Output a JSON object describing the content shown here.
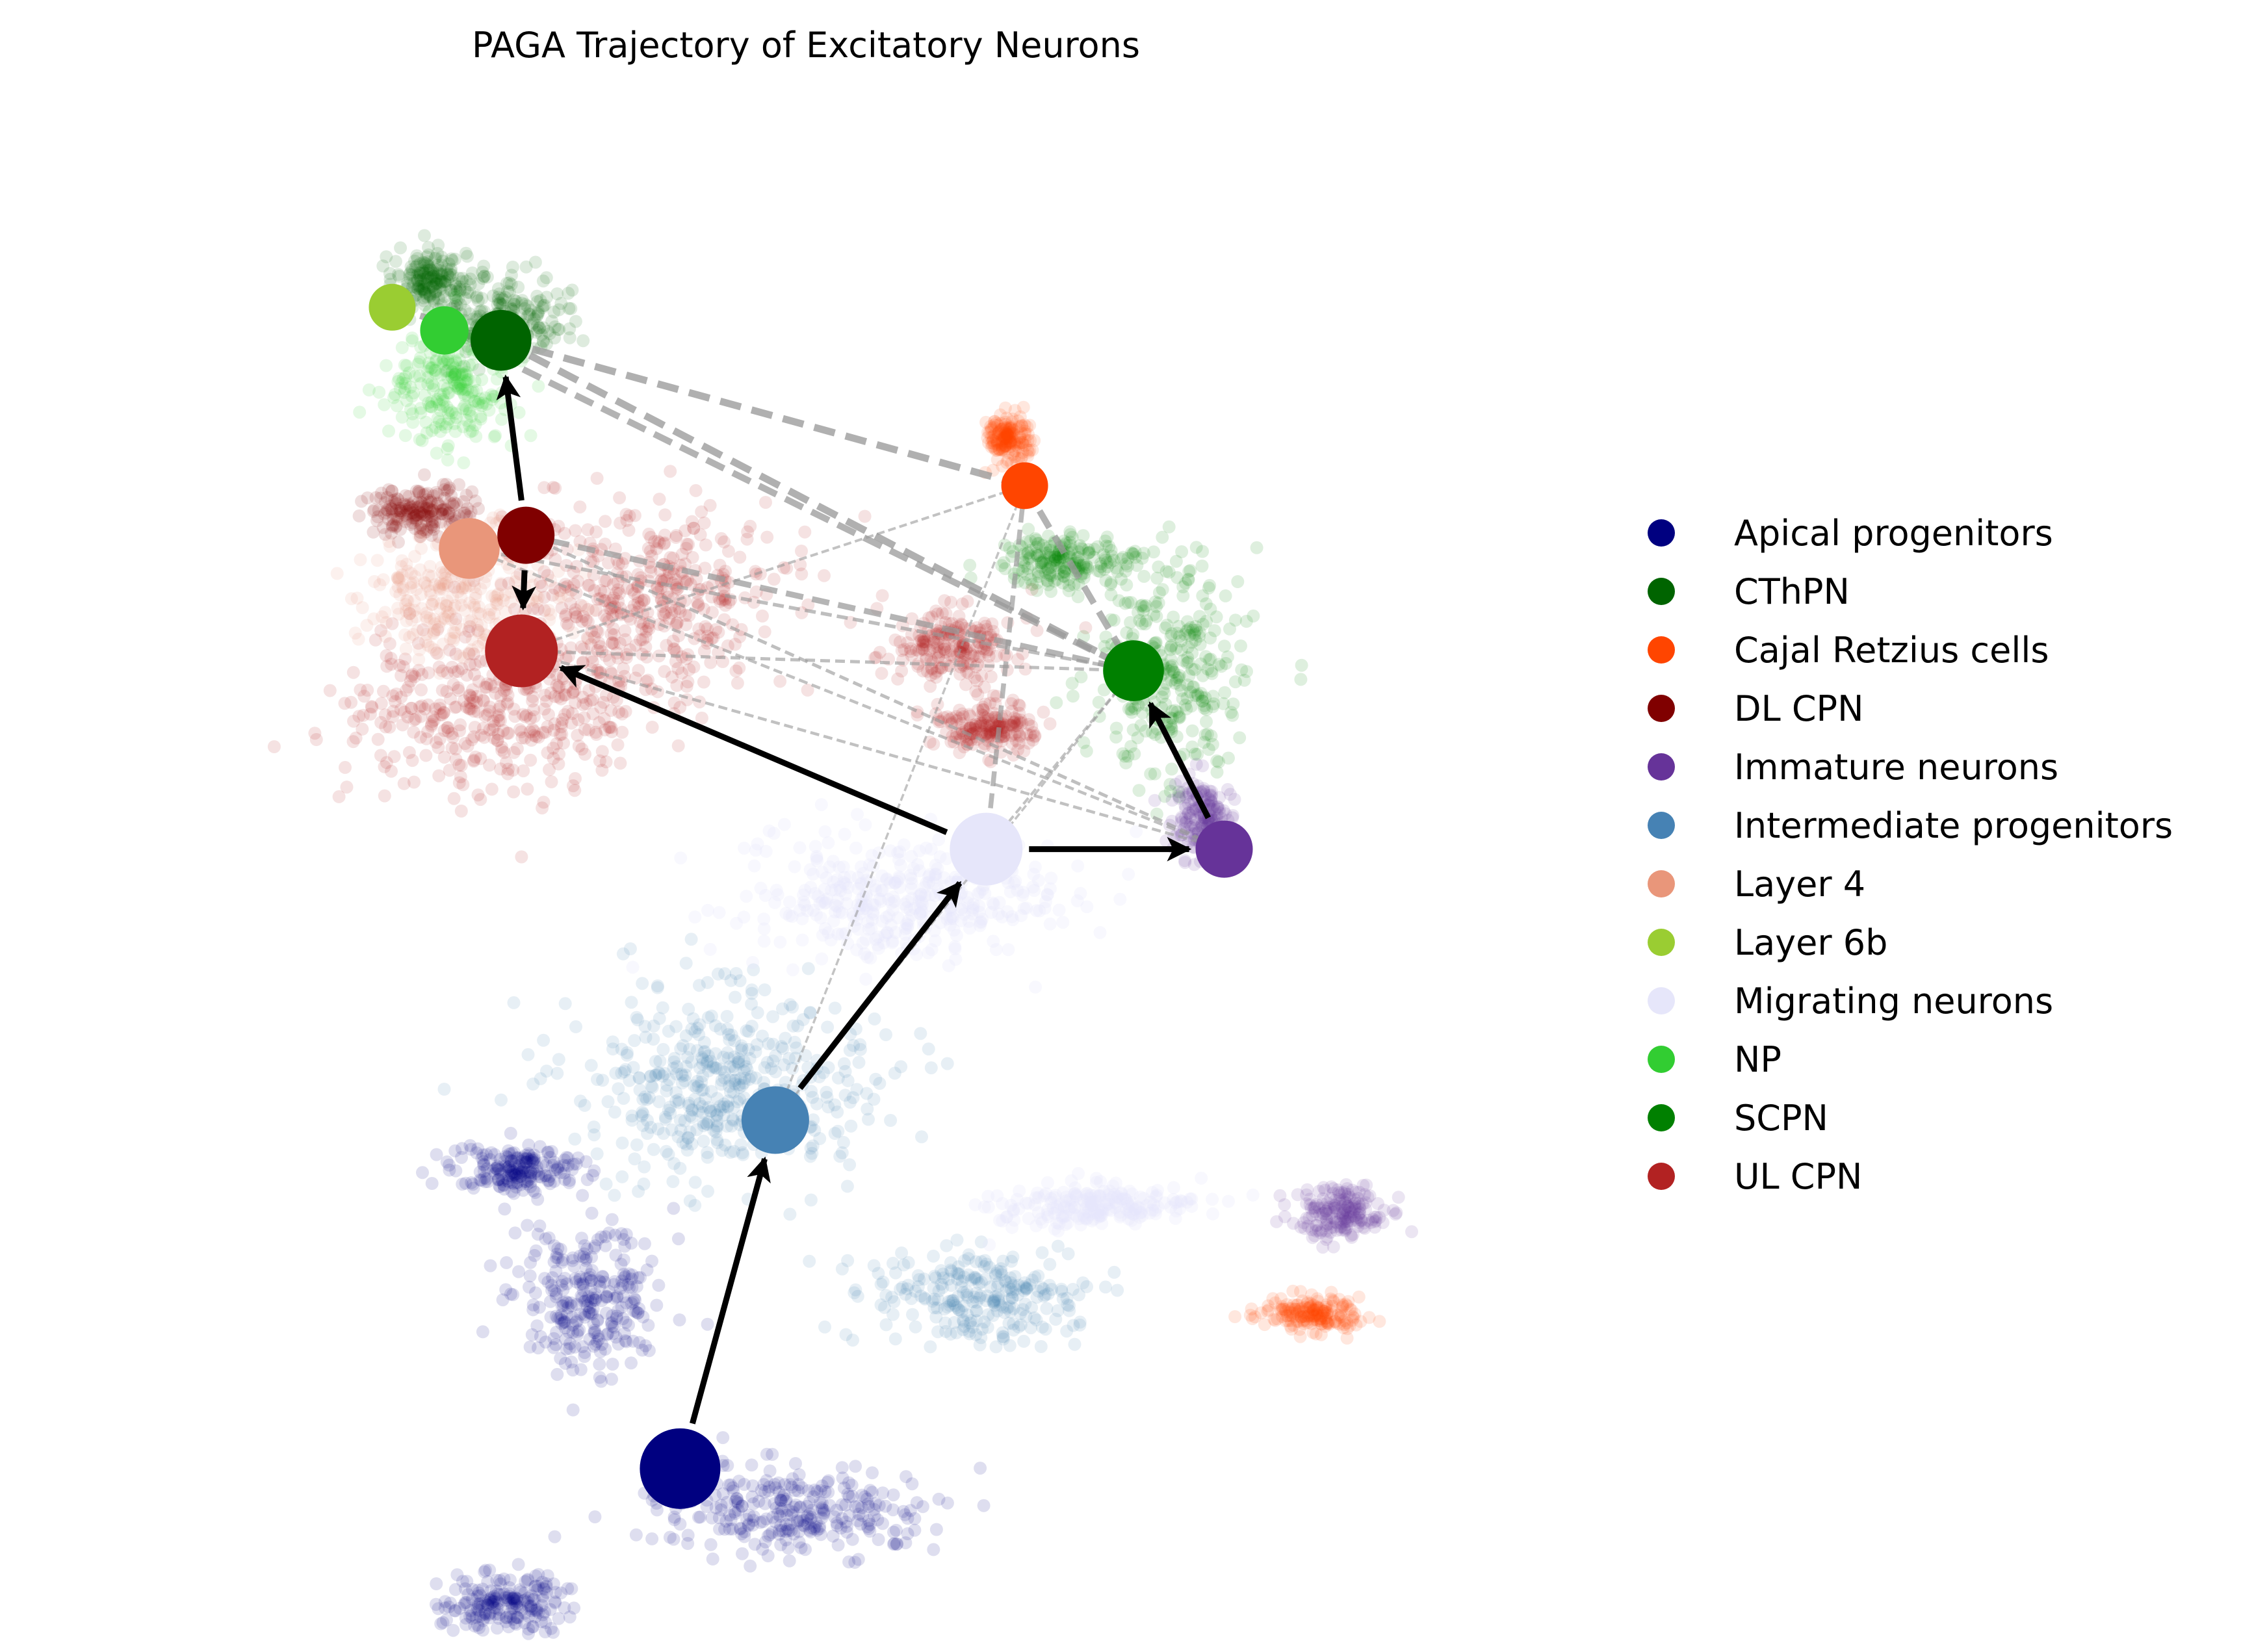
{
  "chart_data": {
    "type": "scatter",
    "title": "PAGA Trajectory of Excitatory Neurons",
    "xlabel": "",
    "ylabel": "",
    "grid": false,
    "axes_visible": false,
    "legend_position": "right",
    "series": [
      {
        "name": "Apical progenitors",
        "color": "#000080"
      },
      {
        "name": "CThPN",
        "color": "#006400"
      },
      {
        "name": "Cajal Retzius cells",
        "color": "#FF4500"
      },
      {
        "name": "DL CPN",
        "color": "#800000"
      },
      {
        "name": "Immature neurons",
        "color": "#663399"
      },
      {
        "name": "Intermediate progenitors",
        "color": "#4682B4"
      },
      {
        "name": "Layer 4",
        "color": "#E9967A"
      },
      {
        "name": "Layer 6b",
        "color": "#9ACD32"
      },
      {
        "name": "Migrating neurons",
        "color": "#E6E6FA"
      },
      {
        "name": "NP",
        "color": "#32CD32"
      },
      {
        "name": "SCPN",
        "color": "#008000"
      },
      {
        "name": "UL CPN",
        "color": "#B22222"
      }
    ],
    "paga_nodes": [
      {
        "cluster": "Apical progenitors",
        "x": 0.3,
        "y": 0.111,
        "size": 1.0
      },
      {
        "cluster": "Intermediate progenitors",
        "x": 0.342,
        "y": 0.322,
        "size": 0.75
      },
      {
        "cluster": "Migrating neurons",
        "x": 0.435,
        "y": 0.486,
        "size": 0.85
      },
      {
        "cluster": "Immature neurons",
        "x": 0.54,
        "y": 0.486,
        "size": 0.55
      },
      {
        "cluster": "SCPN",
        "x": 0.5,
        "y": 0.594,
        "size": 0.62
      },
      {
        "cluster": "UL CPN",
        "x": 0.23,
        "y": 0.606,
        "size": 0.85
      },
      {
        "cluster": "Layer 4",
        "x": 0.207,
        "y": 0.668,
        "size": 0.62
      },
      {
        "cluster": "DL CPN",
        "x": 0.232,
        "y": 0.676,
        "size": 0.55
      },
      {
        "cluster": "CThPN",
        "x": 0.221,
        "y": 0.794,
        "size": 0.62
      },
      {
        "cluster": "NP",
        "x": 0.196,
        "y": 0.8,
        "size": 0.38
      },
      {
        "cluster": "Layer 6b",
        "x": 0.173,
        "y": 0.814,
        "size": 0.35
      },
      {
        "cluster": "Cajal Retzius cells",
        "x": 0.452,
        "y": 0.706,
        "size": 0.35
      }
    ],
    "paga_transitions": [
      {
        "from": "Apical progenitors",
        "to": "Intermediate progenitors"
      },
      {
        "from": "Intermediate progenitors",
        "to": "Migrating neurons"
      },
      {
        "from": "Migrating neurons",
        "to": "Immature neurons"
      },
      {
        "from": "Migrating neurons",
        "to": "UL CPN"
      },
      {
        "from": "Immature neurons",
        "to": "SCPN"
      },
      {
        "from": "DL CPN",
        "to": "UL CPN"
      },
      {
        "from": "DL CPN",
        "to": "CThPN"
      }
    ],
    "paga_connections": [
      {
        "from": "CThPN",
        "to": "SCPN",
        "weight": 0.9
      },
      {
        "from": "NP",
        "to": "SCPN",
        "weight": 0.8
      },
      {
        "from": "CThPN",
        "to": "Cajal Retzius cells",
        "weight": 0.9
      },
      {
        "from": "Layer 6b",
        "to": "CThPN",
        "weight": 0.8
      },
      {
        "from": "Cajal Retzius cells",
        "to": "SCPN",
        "weight": 0.8
      },
      {
        "from": "DL CPN",
        "to": "SCPN",
        "weight": 0.7
      },
      {
        "from": "Layer 4",
        "to": "SCPN",
        "weight": 0.35
      },
      {
        "from": "UL CPN",
        "to": "SCPN",
        "weight": 0.3
      },
      {
        "from": "Layer 4",
        "to": "Immature neurons",
        "weight": 0.25
      },
      {
        "from": "UL CPN",
        "to": "Immature neurons",
        "weight": 0.25
      },
      {
        "from": "DL CPN",
        "to": "Immature neurons",
        "weight": 0.3
      },
      {
        "from": "UL CPN",
        "to": "Cajal Retzius cells",
        "weight": 0.2
      },
      {
        "from": "Cajal Retzius cells",
        "to": "Migrating neurons",
        "weight": 0.55
      },
      {
        "from": "Intermediate progenitors",
        "to": "Cajal Retzius cells",
        "weight": 0.15
      },
      {
        "from": "Intermediate progenitors",
        "to": "SCPN",
        "weight": 0.15
      },
      {
        "from": "Migrating neurons",
        "to": "SCPN",
        "weight": 0.2
      }
    ],
    "cell_clouds": [
      {
        "cluster": "Apical progenitors",
        "cx": 0.35,
        "cy": 0.085,
        "rx": 0.055,
        "ry": 0.024
      },
      {
        "cluster": "Apical progenitors",
        "cx": 0.26,
        "cy": 0.215,
        "rx": 0.03,
        "ry": 0.038
      },
      {
        "cluster": "Apical progenitors",
        "cx": 0.228,
        "cy": 0.292,
        "rx": 0.026,
        "ry": 0.014
      },
      {
        "cluster": "Apical progenitors",
        "cx": 0.222,
        "cy": 0.03,
        "rx": 0.024,
        "ry": 0.016
      },
      {
        "cluster": "Intermediate progenitors",
        "cx": 0.32,
        "cy": 0.345,
        "rx": 0.06,
        "ry": 0.05
      },
      {
        "cluster": "Intermediate progenitors",
        "cx": 0.43,
        "cy": 0.215,
        "rx": 0.04,
        "ry": 0.026
      },
      {
        "cluster": "Migrating neurons",
        "cx": 0.4,
        "cy": 0.455,
        "rx": 0.065,
        "ry": 0.035
      },
      {
        "cluster": "Migrating neurons",
        "cx": 0.48,
        "cy": 0.27,
        "rx": 0.04,
        "ry": 0.012
      },
      {
        "cluster": "UL CPN",
        "cx": 0.218,
        "cy": 0.57,
        "rx": 0.06,
        "ry": 0.045
      },
      {
        "cluster": "UL CPN",
        "cx": 0.285,
        "cy": 0.64,
        "rx": 0.055,
        "ry": 0.05
      },
      {
        "cluster": "UL CPN",
        "cx": 0.42,
        "cy": 0.61,
        "rx": 0.025,
        "ry": 0.02
      },
      {
        "cluster": "UL CPN",
        "cx": 0.435,
        "cy": 0.56,
        "rx": 0.02,
        "ry": 0.014
      },
      {
        "cluster": "Layer 4",
        "cx": 0.205,
        "cy": 0.64,
        "rx": 0.04,
        "ry": 0.035
      },
      {
        "cluster": "DL CPN",
        "cx": 0.185,
        "cy": 0.69,
        "rx": 0.02,
        "ry": 0.014
      },
      {
        "cluster": "CThPN",
        "cx": 0.22,
        "cy": 0.81,
        "rx": 0.028,
        "ry": 0.022
      },
      {
        "cluster": "CThPN",
        "cx": 0.19,
        "cy": 0.83,
        "rx": 0.015,
        "ry": 0.015
      },
      {
        "cluster": "NP",
        "cx": 0.2,
        "cy": 0.765,
        "rx": 0.025,
        "ry": 0.03
      },
      {
        "cluster": "SCPN",
        "cx": 0.515,
        "cy": 0.6,
        "rx": 0.03,
        "ry": 0.06
      },
      {
        "cluster": "SCPN",
        "cx": 0.47,
        "cy": 0.66,
        "rx": 0.025,
        "ry": 0.015
      },
      {
        "cluster": "Immature neurons",
        "cx": 0.53,
        "cy": 0.505,
        "rx": 0.012,
        "ry": 0.02
      },
      {
        "cluster": "Immature neurons",
        "cx": 0.59,
        "cy": 0.265,
        "rx": 0.018,
        "ry": 0.016
      },
      {
        "cluster": "Cajal Retzius cells",
        "cx": 0.445,
        "cy": 0.735,
        "rx": 0.008,
        "ry": 0.012
      },
      {
        "cluster": "Cajal Retzius cells",
        "cx": 0.578,
        "cy": 0.205,
        "rx": 0.02,
        "ry": 0.01
      }
    ]
  }
}
